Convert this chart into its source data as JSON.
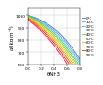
{
  "xlabel": "θNH3",
  "ylabel": "ρ/(kg·m⁻³)",
  "xlim": [
    0.0,
    0.8
  ],
  "ylim": [
    600,
    1060
  ],
  "x_ticks": [
    0.0,
    0.2,
    0.4,
    0.6,
    0.8
  ],
  "y_ticks": [
    600,
    700,
    800,
    900,
    1000
  ],
  "grid": true,
  "lines": [
    {
      "label": "0°C",
      "color": "#4466ff",
      "xpts": [
        0.0,
        0.1,
        0.2,
        0.3,
        0.4,
        0.5,
        0.6,
        0.7,
        0.8
      ],
      "ypts": [
        999,
        985,
        960,
        930,
        893,
        847,
        787,
        717,
        638
      ]
    },
    {
      "label": "10°C",
      "color": "#44aaff",
      "xpts": [
        0.0,
        0.1,
        0.2,
        0.3,
        0.4,
        0.5,
        0.6,
        0.7,
        0.8
      ],
      "ypts": [
        999,
        982,
        953,
        920,
        880,
        832,
        770,
        698,
        619
      ]
    },
    {
      "label": "20°C",
      "color": "#44ccbb",
      "xpts": [
        0.0,
        0.1,
        0.2,
        0.3,
        0.4,
        0.5,
        0.6,
        0.7,
        0.8
      ],
      "ypts": [
        998,
        978,
        946,
        910,
        867,
        816,
        752,
        679,
        600
      ]
    },
    {
      "label": "30°C",
      "color": "#44cc44",
      "xpts": [
        0.0,
        0.1,
        0.2,
        0.3,
        0.4,
        0.5,
        0.6,
        0.7,
        0.8
      ],
      "ypts": [
        996,
        973,
        938,
        899,
        854,
        799,
        734,
        659,
        580
      ]
    },
    {
      "label": "40°C",
      "color": "#88cc00",
      "xpts": [
        0.0,
        0.1,
        0.2,
        0.3,
        0.4,
        0.5,
        0.6,
        0.7,
        0.8
      ],
      "ypts": [
        992,
        967,
        929,
        887,
        839,
        782,
        715,
        638,
        560
      ]
    },
    {
      "label": "50°C",
      "color": "#cccc00",
      "xpts": [
        0.0,
        0.1,
        0.2,
        0.3,
        0.4,
        0.5,
        0.6,
        0.7,
        0.8
      ],
      "ypts": [
        988,
        960,
        919,
        875,
        824,
        764,
        695,
        617,
        538
      ]
    },
    {
      "label": "60°C",
      "color": "#ffaa00",
      "xpts": [
        0.0,
        0.1,
        0.2,
        0.3,
        0.4,
        0.5,
        0.6,
        0.7,
        0.8
      ],
      "ypts": [
        983,
        952,
        909,
        861,
        808,
        746,
        675,
        595,
        516
      ]
    },
    {
      "label": "70°C",
      "color": "#ff6600",
      "xpts": [
        0.0,
        0.1,
        0.2,
        0.3,
        0.4,
        0.5,
        0.6,
        0.7,
        0.8
      ],
      "ypts": [
        978,
        944,
        897,
        847,
        791,
        726,
        653,
        573,
        493
      ]
    },
    {
      "label": "80°C",
      "color": "#ff2200",
      "xpts": [
        0.0,
        0.1,
        0.2,
        0.3,
        0.4,
        0.5,
        0.6,
        0.7,
        0.8
      ],
      "ypts": [
        972,
        935,
        885,
        832,
        773,
        706,
        631,
        550,
        470
      ]
    },
    {
      "label": "90°C",
      "color": "#ff0077",
      "xpts": [
        0.0,
        0.1,
        0.2,
        0.3,
        0.4,
        0.5,
        0.6,
        0.7,
        0.8
      ],
      "ypts": [
        965,
        925,
        872,
        816,
        755,
        685,
        608,
        527,
        446
      ]
    }
  ],
  "background_color": "#ffffff",
  "linewidth": 0.6,
  "fontsize_labels": 4.0,
  "fontsize_ticks": 3.2,
  "fontsize_legend": 2.8
}
